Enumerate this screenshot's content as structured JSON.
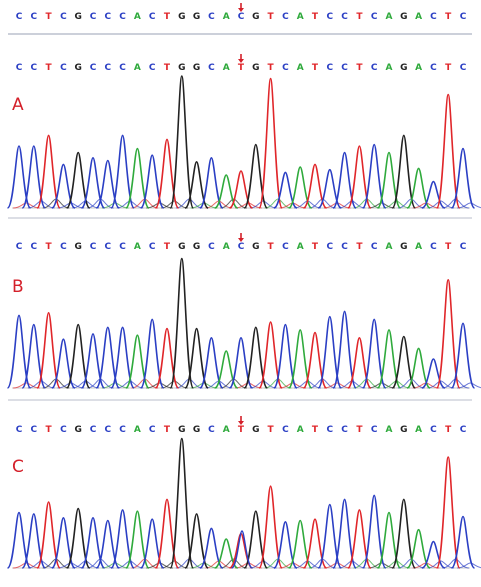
{
  "reference_sequence": "CCTCGCCCACTGGCACGTCATCCTCAGACTC",
  "panels": [
    {
      "label": "A",
      "sequence": "CCTCGCCCACTGGCATGTCATCCTCAGACTC",
      "peaks": [
        0.47,
        0.47,
        0.55,
        0.33,
        0.42,
        0.38,
        0.36,
        0.55,
        0.45,
        0.4,
        0.52,
        1.0,
        0.35,
        0.38,
        0.25,
        0.28,
        0.48,
        0.98,
        0.27,
        0.31,
        0.33,
        0.29,
        0.42,
        0.47,
        0.48,
        0.42,
        0.55,
        0.3,
        0.2,
        0.86,
        0.45
      ]
    },
    {
      "label": "B",
      "sequence": "CCTCGCCCACTGGCACGTCATCCTCAGACTC",
      "peaks": [
        0.55,
        0.48,
        0.57,
        0.37,
        0.48,
        0.41,
        0.46,
        0.46,
        0.4,
        0.52,
        0.45,
        0.98,
        0.45,
        0.38,
        0.28,
        0.38,
        0.46,
        0.5,
        0.48,
        0.44,
        0.42,
        0.54,
        0.58,
        0.38,
        0.52,
        0.44,
        0.39,
        0.3,
        0.22,
        0.82,
        0.49
      ]
    },
    {
      "label": "C",
      "sequence": "CCTCGCCCACTGGCATGTCATCCTCAGACTC",
      "peaks": [
        0.42,
        0.41,
        0.5,
        0.38,
        0.45,
        0.38,
        0.36,
        0.44,
        0.43,
        0.37,
        0.52,
        0.98,
        0.41,
        0.3,
        0.22,
        0.26,
        0.43,
        0.62,
        0.35,
        0.36,
        0.37,
        0.48,
        0.52,
        0.44,
        0.55,
        0.42,
        0.52,
        0.29,
        0.2,
        0.84,
        0.39
      ]
    }
  ],
  "base_colors": {
    "A": "#2faa3c",
    "C": "#2b3fc4",
    "G": "#222222",
    "T": "#e0262a"
  },
  "mutation_index": 15,
  "arrow_color": "#d4202a"
}
